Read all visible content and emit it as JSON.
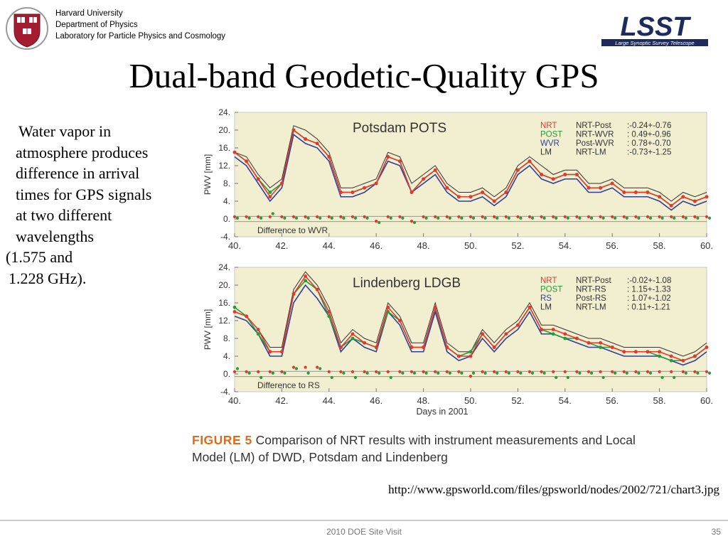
{
  "header": {
    "line1": "Harvard University",
    "line2": "Department of Physics",
    "line3": "Laboratory for Particle Physics and Cosmology"
  },
  "logo": {
    "text": "LSST",
    "subtitle": "Large Synoptic Survey Telescope"
  },
  "title": "Dual-band Geodetic-Quality GPS",
  "bullets": [
    "Water vapor in",
    "atmosphere produces",
    "difference in arrival",
    "times for GPS signals",
    "at two different",
    "wavelengths",
    "(1.575 and",
    "1.228 GHz)."
  ],
  "figure": {
    "caption_label": "FIGURE 5",
    "caption_text1": " Comparison of NRT results with instrument measurements and Local",
    "caption_text2": "Model (LM) of DWD, Potsdam and Lindenberg",
    "url": "http://www.gpsworld.com/files/gpsworld/nodes/2002/721/chart3.jpg"
  },
  "footer": {
    "center": "2010 DOE Site Visit",
    "page": "35"
  },
  "chart_data": [
    {
      "type": "line",
      "title": "Potsdam POTS",
      "ylabel": "PWV [mm]",
      "xlabel": "",
      "xlim": [
        40,
        60
      ],
      "ylim": [
        -4,
        24
      ],
      "xticks": [
        "40.",
        "42.",
        "44.",
        "46.",
        "48.",
        "50.",
        "52.",
        "54.",
        "56.",
        "58.",
        "60."
      ],
      "yticks": [
        "24.",
        "20.",
        "16.",
        "12.",
        "8.",
        "4.",
        "0.",
        "-4."
      ],
      "annotation": "Difference to WVR",
      "colors": {
        "NRT": "#e8352e",
        "POST": "#1f9e3a",
        "WVR": "#2f3f9a",
        "LM": "#333333",
        "bg": "#f1efcf"
      },
      "legend": [
        {
          "name": "NRT",
          "pair": "NRT-Post",
          "stat": ":-0.24+-0.76"
        },
        {
          "name": "POST",
          "pair": "NRT-WVR",
          "stat": ": 0.49+-0.96"
        },
        {
          "name": "WVR",
          "pair": "Post-WVR",
          "stat": ": 0.78+-0.70"
        },
        {
          "name": "LM",
          "pair": "NRT-LM",
          "stat": ":-0.73+-1.25"
        }
      ],
      "x": [
        40,
        40.5,
        41,
        41.5,
        42,
        42.5,
        43,
        43.5,
        44,
        44.5,
        45,
        45.5,
        46,
        46.5,
        47,
        47.5,
        48,
        48.5,
        49,
        49.5,
        50,
        50.5,
        51,
        51.5,
        52,
        52.5,
        53,
        53.5,
        54,
        54.5,
        55,
        55.5,
        56,
        56.5,
        57,
        57.5,
        58,
        58.5,
        59,
        59.5,
        60
      ],
      "series": [
        {
          "name": "NRT",
          "values": [
            15,
            13,
            9,
            5,
            8,
            20,
            18,
            17,
            14,
            6,
            6,
            7,
            8,
            14,
            13,
            6,
            9,
            11,
            7,
            5,
            5,
            6,
            4,
            6,
            11,
            13,
            10,
            9,
            10,
            10,
            7,
            7,
            8,
            6,
            6,
            6,
            5,
            3,
            5,
            4,
            5
          ]
        },
        {
          "name": "POST",
          "values": [
            15,
            13,
            9,
            6,
            8,
            20,
            18,
            17,
            14,
            6,
            6,
            7,
            8,
            14,
            13,
            6,
            9,
            11,
            7,
            5,
            5,
            6,
            4,
            6,
            11,
            13,
            10,
            9,
            10,
            10,
            7,
            7,
            8,
            6,
            6,
            6,
            5,
            3,
            5,
            4,
            5
          ]
        },
        {
          "name": "WVR",
          "values": [
            14,
            12,
            8,
            4,
            7,
            19,
            17,
            16,
            13,
            5,
            5,
            6,
            8,
            13,
            12,
            6,
            8,
            10,
            6,
            4,
            4,
            5,
            3,
            5,
            10,
            12,
            9,
            8,
            9,
            9,
            6,
            6,
            7,
            5,
            5,
            5,
            4,
            2,
            4,
            3,
            4
          ]
        },
        {
          "name": "LM",
          "values": [
            15,
            14,
            10,
            7,
            9,
            21,
            20,
            18,
            15,
            7,
            7,
            8,
            9,
            15,
            14,
            8,
            10,
            12,
            8,
            6,
            6,
            7,
            5,
            7,
            12,
            14,
            12,
            10,
            11,
            11,
            8,
            8,
            9,
            7,
            7,
            7,
            6,
            4,
            6,
            5,
            6
          ]
        }
      ]
    },
    {
      "type": "line",
      "title": "Lindenberg LDGB",
      "ylabel": "PWV [mm]",
      "xlabel": "Days in 2001",
      "xlim": [
        40,
        60
      ],
      "ylim": [
        -4,
        24
      ],
      "xticks": [
        "40.",
        "42.",
        "44.",
        "46.",
        "48.",
        "50.",
        "52.",
        "54.",
        "56.",
        "58.",
        "60."
      ],
      "yticks": [
        "24.",
        "20.",
        "16.",
        "12.",
        "8.",
        "4.",
        "0.",
        "-4."
      ],
      "annotation": "Difference to RS",
      "colors": {
        "NRT": "#e8352e",
        "POST": "#1f9e3a",
        "RS": "#2f3f9a",
        "LM": "#333333",
        "bg": "#f1efcf"
      },
      "legend": [
        {
          "name": "NRT",
          "pair": "NRT-Post",
          "stat": ":-0.02+-1.08"
        },
        {
          "name": "POST",
          "pair": "NRT-RS",
          "stat": ": 1.15+-1.33"
        },
        {
          "name": "RS",
          "pair": "Post-RS",
          "stat": ": 1.07+-1.02"
        },
        {
          "name": "LM",
          "pair": "NRT-LM",
          "stat": ": 0.11+-1.21"
        }
      ],
      "x": [
        40,
        40.5,
        41,
        41.5,
        42,
        42.5,
        43,
        43.5,
        44,
        44.5,
        45,
        45.5,
        46,
        46.5,
        47,
        47.5,
        48,
        48.5,
        49,
        49.5,
        50,
        50.5,
        51,
        51.5,
        52,
        52.5,
        53,
        53.5,
        54,
        54.5,
        55,
        55.5,
        56,
        56.5,
        57,
        57.5,
        58,
        58.5,
        59,
        59.5,
        60
      ],
      "series": [
        {
          "name": "NRT",
          "values": [
            14,
            13,
            10,
            5,
            5,
            18,
            22,
            19,
            14,
            6,
            9,
            7,
            6,
            15,
            12,
            6,
            6,
            15,
            6,
            4,
            4,
            9,
            6,
            9,
            11,
            15,
            10,
            10,
            9,
            8,
            7,
            7,
            6,
            5,
            5,
            5,
            5,
            4,
            3,
            4,
            6
          ]
        },
        {
          "name": "POST",
          "values": [
            15,
            13,
            9,
            5,
            5,
            18,
            21,
            19,
            13,
            6,
            8,
            7,
            6,
            14,
            12,
            6,
            6,
            15,
            6,
            4,
            5,
            9,
            6,
            9,
            11,
            15,
            10,
            9,
            8,
            8,
            7,
            6,
            6,
            5,
            5,
            5,
            4,
            3,
            3,
            4,
            6
          ]
        },
        {
          "name": "RS",
          "values": [
            13,
            12,
            9,
            4,
            4,
            16,
            20,
            17,
            13,
            5,
            8,
            6,
            5,
            14,
            11,
            5,
            5,
            14,
            5,
            3,
            4,
            8,
            5,
            8,
            10,
            14,
            9,
            9,
            8,
            7,
            6,
            6,
            5,
            4,
            4,
            4,
            4,
            3,
            2,
            3,
            5
          ]
        },
        {
          "name": "LM",
          "values": [
            14,
            13,
            10,
            6,
            6,
            19,
            23,
            20,
            15,
            7,
            10,
            8,
            7,
            16,
            13,
            7,
            7,
            16,
            7,
            5,
            5,
            10,
            7,
            10,
            12,
            16,
            11,
            11,
            10,
            9,
            8,
            8,
            7,
            6,
            6,
            6,
            6,
            5,
            4,
            5,
            7
          ]
        }
      ]
    }
  ]
}
